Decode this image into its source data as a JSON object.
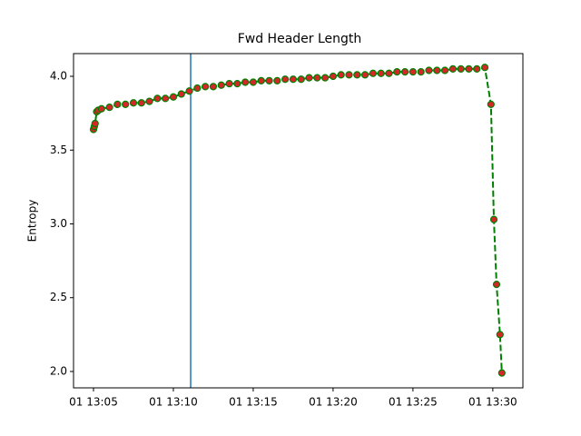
{
  "chart_data": {
    "type": "line",
    "title": "Fwd Header Length",
    "y_label": "Entropy",
    "x": [
      "01 13:05:00",
      "01 13:05:03",
      "01 13:05:06",
      "01 13:05:12",
      "01 13:05:18",
      "01 13:05:30",
      "01 13:06:00",
      "01 13:06:30",
      "01 13:07:00",
      "01 13:07:30",
      "01 13:08:00",
      "01 13:08:30",
      "01 13:09:00",
      "01 13:09:30",
      "01 13:10:00",
      "01 13:10:30",
      "01 13:11:00",
      "01 13:11:30",
      "01 13:12:00",
      "01 13:12:30",
      "01 13:13:00",
      "01 13:13:30",
      "01 13:14:00",
      "01 13:14:30",
      "01 13:15:00",
      "01 13:15:30",
      "01 13:16:00",
      "01 13:16:30",
      "01 13:17:00",
      "01 13:17:30",
      "01 13:18:00",
      "01 13:18:30",
      "01 13:19:00",
      "01 13:19:30",
      "01 13:20:00",
      "01 13:20:30",
      "01 13:21:00",
      "01 13:21:30",
      "01 13:22:00",
      "01 13:22:30",
      "01 13:23:00",
      "01 13:23:30",
      "01 13:24:00",
      "01 13:24:30",
      "01 13:25:00",
      "01 13:25:30",
      "01 13:26:00",
      "01 13:26:30",
      "01 13:27:00",
      "01 13:27:30",
      "01 13:28:00",
      "01 13:28:30",
      "01 13:29:00",
      "01 13:29:30",
      "01 13:29:53",
      "01 13:30:04",
      "01 13:30:14",
      "01 13:30:27",
      "01 13:30:34"
    ],
    "series": [
      {
        "color": "#008000",
        "marker_color": "#d62728",
        "values": [
          3.64,
          3.66,
          3.68,
          3.76,
          3.77,
          3.78,
          3.79,
          3.81,
          3.81,
          3.82,
          3.82,
          3.83,
          3.85,
          3.85,
          3.86,
          3.88,
          3.9,
          3.92,
          3.93,
          3.93,
          3.94,
          3.95,
          3.95,
          3.96,
          3.96,
          3.97,
          3.97,
          3.97,
          3.98,
          3.98,
          3.98,
          3.99,
          3.99,
          3.99,
          4.0,
          4.01,
          4.01,
          4.01,
          4.01,
          4.02,
          4.02,
          4.02,
          4.03,
          4.03,
          4.03,
          4.03,
          4.04,
          4.04,
          4.04,
          4.05,
          4.05,
          4.05,
          4.05,
          4.06,
          3.81,
          3.03,
          2.59,
          2.25,
          1.99
        ]
      }
    ],
    "vline": {
      "x": "01 13:11:05",
      "color": "#1f77b4"
    },
    "xlim": [
      "01 13:03:45",
      "01 13:31:53"
    ],
    "xticks": [
      {
        "value": "01 13:05:00",
        "label": "01 13:05"
      },
      {
        "value": "01 13:10:00",
        "label": "01 13:10"
      },
      {
        "value": "01 13:15:00",
        "label": "01 13:15"
      },
      {
        "value": "01 13:20:00",
        "label": "01 13:20"
      },
      {
        "value": "01 13:25:00",
        "label": "01 13:25"
      },
      {
        "value": "01 13:30:00",
        "label": "01 13:30"
      }
    ],
    "ylim": [
      1.889,
      4.154
    ],
    "yticks": [
      {
        "value": 2,
        "label": "2.0"
      },
      {
        "value": 2.5,
        "label": "2.5"
      },
      {
        "value": 3,
        "label": "3.0"
      },
      {
        "value": 3.5,
        "label": "3.5"
      },
      {
        "value": 4,
        "label": "4.0"
      }
    ]
  }
}
